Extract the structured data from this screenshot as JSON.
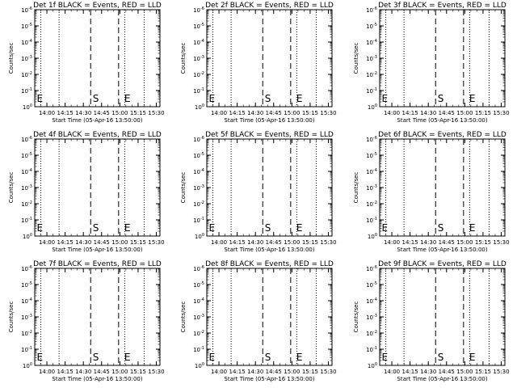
{
  "chart_data": [
    {
      "type": "line",
      "title": "Det 1f BLACK = Events, RED = LLD",
      "xlabel": "Start Time (05-Apr-16 13:50:00)",
      "ylabel": "Counts/sec",
      "x_ticks": [
        "14:00",
        "14:15",
        "14:30",
        "14:45",
        "15:00",
        "15:15",
        "15:30"
      ],
      "y_ticks": [
        "10^0",
        "10^-1",
        "10^-2",
        "10^-3",
        "10^-4",
        "10^-5",
        "10^-6"
      ],
      "yscale": "log",
      "series": [],
      "dotted_lines": [
        "13:55",
        "14:10",
        "15:04",
        "15:20"
      ],
      "dashed_lines": [
        "14:36",
        "14:59"
      ],
      "markers": [
        {
          "label": "E",
          "at": "13:51"
        },
        {
          "label": "S",
          "at": "14:37"
        },
        {
          "label": "E",
          "at": "15:03"
        }
      ]
    },
    {
      "type": "line",
      "title": "Det 2f BLACK = Events, RED = LLD",
      "xlabel": "Start Time (05-Apr-16 13:50:00)",
      "ylabel": "Counts/sec",
      "x_ticks": [
        "14:00",
        "14:15",
        "14:30",
        "14:45",
        "15:00",
        "15:15",
        "15:30"
      ],
      "y_ticks": [
        "10^0",
        "10^-1",
        "10^-2",
        "10^-3",
        "10^-4",
        "10^-5",
        "10^-6"
      ],
      "yscale": "log",
      "series": [],
      "dotted_lines": [
        "13:55",
        "14:10",
        "15:04",
        "15:20"
      ],
      "dashed_lines": [
        "14:36",
        "14:59"
      ],
      "markers": [
        {
          "label": "E",
          "at": "13:51"
        },
        {
          "label": "S",
          "at": "14:37"
        },
        {
          "label": "E",
          "at": "15:03"
        }
      ]
    },
    {
      "type": "line",
      "title": "Det 3f BLACK = Events, RED = LLD",
      "xlabel": "Start Time (05-Apr-16 13:50:00)",
      "ylabel": "Counts/sec",
      "x_ticks": [
        "14:00",
        "14:15",
        "14:30",
        "14:45",
        "15:00",
        "15:15",
        "15:30"
      ],
      "y_ticks": [
        "10^0",
        "10^-1",
        "10^-2",
        "10^-3",
        "10^-4",
        "10^-5",
        "10^-6"
      ],
      "yscale": "log",
      "series": [],
      "dotted_lines": [
        "13:55",
        "14:10",
        "15:04",
        "15:20"
      ],
      "dashed_lines": [
        "14:36",
        "14:59"
      ],
      "markers": [
        {
          "label": "E",
          "at": "13:51"
        },
        {
          "label": "S",
          "at": "14:37"
        },
        {
          "label": "E",
          "at": "15:03"
        }
      ]
    },
    {
      "type": "line",
      "title": "Det 4f BLACK = Events, RED = LLD",
      "xlabel": "Start Time (05-Apr-16 13:50:00)",
      "ylabel": "Counts/sec",
      "x_ticks": [
        "14:00",
        "14:15",
        "14:30",
        "14:45",
        "15:00",
        "15:15",
        "15:30"
      ],
      "y_ticks": [
        "10^0",
        "10^-1",
        "10^-2",
        "10^-3",
        "10^-4",
        "10^-5",
        "10^-6"
      ],
      "yscale": "log",
      "series": [],
      "dotted_lines": [
        "13:55",
        "14:10",
        "15:04",
        "15:20"
      ],
      "dashed_lines": [
        "14:36",
        "14:59"
      ],
      "markers": [
        {
          "label": "E",
          "at": "13:51"
        },
        {
          "label": "S",
          "at": "14:37"
        },
        {
          "label": "E",
          "at": "15:03"
        }
      ]
    },
    {
      "type": "line",
      "title": "Det 5f BLACK = Events, RED = LLD",
      "xlabel": "Start Time (05-Apr-16 13:50:00)",
      "ylabel": "Counts/sec",
      "x_ticks": [
        "14:00",
        "14:15",
        "14:30",
        "14:45",
        "15:00",
        "15:15",
        "15:30"
      ],
      "y_ticks": [
        "10^0",
        "10^-1",
        "10^-2",
        "10^-3",
        "10^-4",
        "10^-5",
        "10^-6"
      ],
      "yscale": "log",
      "series": [],
      "dotted_lines": [
        "13:55",
        "14:10",
        "15:04",
        "15:20"
      ],
      "dashed_lines": [
        "14:36",
        "14:59"
      ],
      "markers": [
        {
          "label": "E",
          "at": "13:51"
        },
        {
          "label": "S",
          "at": "14:37"
        },
        {
          "label": "E",
          "at": "15:03"
        }
      ]
    },
    {
      "type": "line",
      "title": "Det 6f BLACK = Events, RED = LLD",
      "xlabel": "Start Time (05-Apr-16 13:50:00)",
      "ylabel": "Counts/sec",
      "x_ticks": [
        "14:00",
        "14:15",
        "14:30",
        "14:45",
        "15:00",
        "15:15",
        "15:30"
      ],
      "y_ticks": [
        "10^0",
        "10^-1",
        "10^-2",
        "10^-3",
        "10^-4",
        "10^-5",
        "10^-6"
      ],
      "yscale": "log",
      "series": [],
      "dotted_lines": [
        "13:55",
        "14:10",
        "15:04",
        "15:20"
      ],
      "dashed_lines": [
        "14:36",
        "14:59"
      ],
      "markers": [
        {
          "label": "E",
          "at": "13:51"
        },
        {
          "label": "S",
          "at": "14:37"
        },
        {
          "label": "E",
          "at": "15:03"
        }
      ]
    },
    {
      "type": "line",
      "title": "Det 7f BLACK = Events, RED = LLD",
      "xlabel": "Start Time (05-Apr-16 13:50:00)",
      "ylabel": "Counts/sec",
      "x_ticks": [
        "14:00",
        "14:15",
        "14:30",
        "14:45",
        "15:00",
        "15:15",
        "15:30"
      ],
      "y_ticks": [
        "10^0",
        "10^-1",
        "10^-2",
        "10^-3",
        "10^-4",
        "10^-5",
        "10^-6"
      ],
      "yscale": "log",
      "series": [],
      "dotted_lines": [
        "13:55",
        "14:10",
        "15:04",
        "15:20"
      ],
      "dashed_lines": [
        "14:36",
        "14:59"
      ],
      "markers": [
        {
          "label": "E",
          "at": "13:51"
        },
        {
          "label": "S",
          "at": "14:37"
        },
        {
          "label": "E",
          "at": "15:03"
        }
      ]
    },
    {
      "type": "line",
      "title": "Det 8f BLACK = Events, RED = LLD",
      "xlabel": "Start Time (05-Apr-16 13:50:00)",
      "ylabel": "Counts/sec",
      "x_ticks": [
        "14:00",
        "14:15",
        "14:30",
        "14:45",
        "15:00",
        "15:15",
        "15:30"
      ],
      "y_ticks": [
        "10^0",
        "10^-1",
        "10^-2",
        "10^-3",
        "10^-4",
        "10^-5",
        "10^-6"
      ],
      "yscale": "log",
      "series": [],
      "dotted_lines": [
        "13:55",
        "14:10",
        "15:04",
        "15:20"
      ],
      "dashed_lines": [
        "14:36",
        "14:59"
      ],
      "markers": [
        {
          "label": "E",
          "at": "13:51"
        },
        {
          "label": "S",
          "at": "14:37"
        },
        {
          "label": "E",
          "at": "15:03"
        }
      ]
    },
    {
      "type": "line",
      "title": "Det 9f BLACK = Events, RED = LLD",
      "xlabel": "Start Time (05-Apr-16 13:50:00)",
      "ylabel": "Counts/sec",
      "x_ticks": [
        "14:00",
        "14:15",
        "14:30",
        "14:45",
        "15:00",
        "15:15",
        "15:30"
      ],
      "y_ticks": [
        "10^0",
        "10^-1",
        "10^-2",
        "10^-3",
        "10^-4",
        "10^-5",
        "10^-6"
      ],
      "yscale": "log",
      "series": [],
      "dotted_lines": [
        "13:55",
        "14:10",
        "15:04",
        "15:20"
      ],
      "dashed_lines": [
        "14:36",
        "14:59"
      ],
      "markers": [
        {
          "label": "E",
          "at": "13:51"
        },
        {
          "label": "S",
          "at": "14:37"
        },
        {
          "label": "E",
          "at": "15:03"
        }
      ]
    }
  ]
}
